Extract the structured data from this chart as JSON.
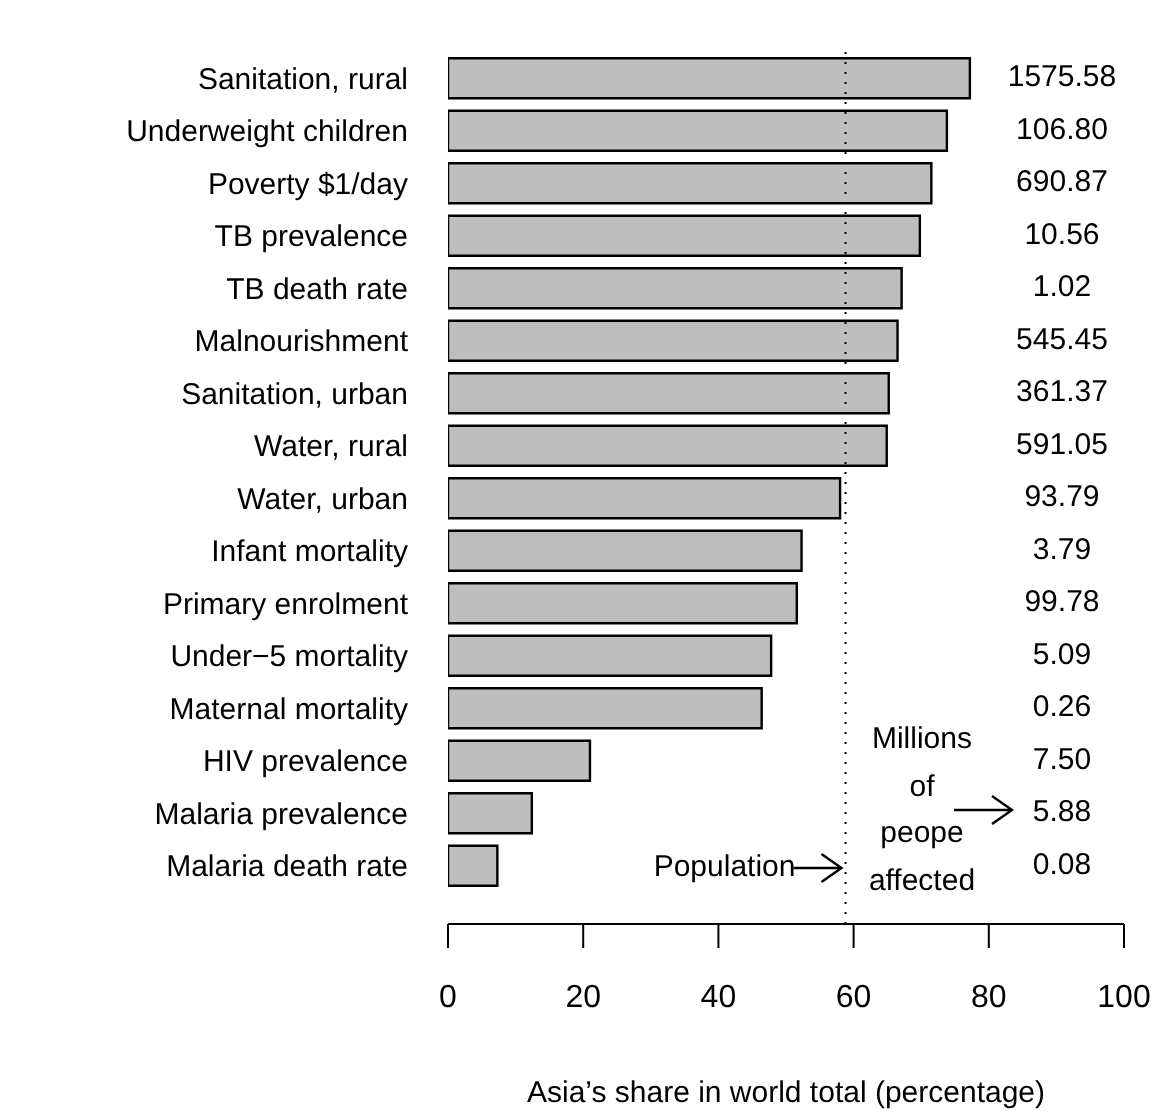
{
  "chart_data": {
    "type": "bar",
    "orientation": "horizontal",
    "xlabel": "Asia’s share in world total (percentage)",
    "categories": [
      "Sanitation, rural",
      "Underweight children",
      "Poverty $1/day",
      "TB prevalence",
      "TB death rate",
      "Malnourishment",
      "Sanitation, urban",
      "Water, rural",
      "Water, urban",
      "Infant mortality",
      "Primary enrolment",
      "Under−5 mortality",
      "Maternal mortality",
      "HIV prevalence",
      "Malaria prevalence",
      "Malaria death rate"
    ],
    "values": [
      77.2,
      73.8,
      71.5,
      69.8,
      67.1,
      66.5,
      65.2,
      64.9,
      58.0,
      52.3,
      51.6,
      47.8,
      46.4,
      21.0,
      12.4,
      7.3
    ],
    "color": "#bebebe",
    "grid": false,
    "legend": false,
    "xlim": [
      0,
      100
    ],
    "xticks": [
      0,
      20,
      40,
      60,
      80,
      100
    ],
    "ref_lines": [
      {
        "axis": "x",
        "value": 58.8,
        "label": "Population",
        "line_style": "dotted"
      }
    ],
    "annotations": [
      "1575.58",
      "106.80",
      "690.87",
      "10.56",
      "1.02",
      "545.45",
      "361.37",
      "591.05",
      "93.79",
      "3.79",
      "99.78",
      "5.09",
      "0.26",
      "7.50",
      "5.88",
      "0.08",
      "Millions of peope affected"
    ]
  }
}
